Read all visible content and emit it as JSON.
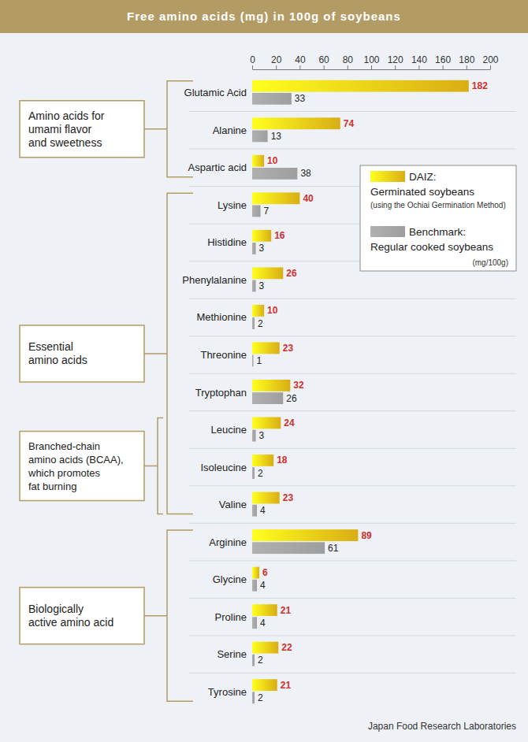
{
  "chart_data": {
    "type": "bar",
    "orientation": "horizontal",
    "title": "Free amino acids (mg) in 100g of soybeans",
    "categories": [
      "Glutamic Acid",
      "Alanine",
      "Aspartic acid",
      "Lysine",
      "Histidine",
      "Phenylalanine",
      "Methionine",
      "Threonine",
      "Tryptophan",
      "Leucine",
      "Isoleucine",
      "Valine",
      "Arginine",
      "Glycine",
      "Proline",
      "Serine",
      "Tyrosine"
    ],
    "series": [
      {
        "name": "DAIZ: Germinated soybeans",
        "color": "#d9ad14",
        "values": [
          182,
          74,
          10,
          40,
          16,
          26,
          10,
          23,
          32,
          24,
          18,
          23,
          89,
          6,
          21,
          22,
          21
        ]
      },
      {
        "name": "Benchmark: Regular cooked soybeans",
        "color": "#9e9e9e",
        "values": [
          33,
          13,
          38,
          7,
          3,
          3,
          2,
          1,
          26,
          3,
          2,
          4,
          61,
          4,
          4,
          2,
          2
        ]
      }
    ],
    "xlim": [
      0,
      200
    ],
    "xticks": [
      0,
      20,
      40,
      60,
      80,
      100,
      120,
      140,
      160,
      180,
      200
    ],
    "grid": false,
    "legend": "upper right",
    "data_labels": true,
    "annotations": [
      "(using the Ochiai Germination Method)",
      "(mg/100g)"
    ],
    "source": "Japan Food Research Laboratories",
    "groups": [
      {
        "label": [
          "Amino acids for",
          "umami flavor",
          "and sweetness"
        ],
        "categories": [
          "Glutamic Acid",
          "Alanine",
          "Aspartic acid"
        ]
      },
      {
        "label": [
          "Essential",
          "amino acids"
        ],
        "categories": [
          "Lysine",
          "Histidine",
          "Phenylalanine",
          "Methionine",
          "Threonine",
          "Tryptophan",
          "Leucine",
          "Isoleucine",
          "Valine"
        ]
      },
      {
        "label": [
          "Branched-chain",
          "amino acids (BCAA),",
          "which promotes",
          "fat burning"
        ],
        "categories": [
          "Leucine",
          "Isoleucine",
          "Valine"
        ]
      },
      {
        "label": [
          "Biologically",
          "active amino acid"
        ],
        "categories": [
          "Arginine",
          "Glycine",
          "Proline",
          "Serine",
          "Tyrosine"
        ]
      }
    ]
  }
}
